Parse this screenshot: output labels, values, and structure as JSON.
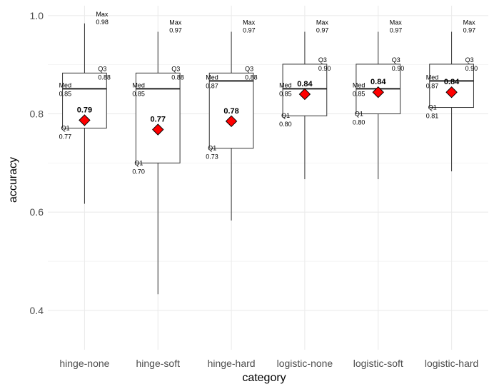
{
  "chart_data": {
    "type": "boxplot",
    "xlabel": "category",
    "ylabel": "accuracy",
    "ylim": [
      0.32,
      1.02
    ],
    "y_ticks": [
      0.4,
      0.6,
      0.8,
      1.0
    ],
    "y_tick_labels": [
      "0.4",
      "0.6",
      "0.8",
      "1.0"
    ],
    "grid": true,
    "annotation_labels": {
      "max": "Max",
      "q3": "Q3",
      "median": "Med",
      "q1": "Q1"
    },
    "mean_marker_color": "#ff0000",
    "categories": [
      "hinge-none",
      "hinge-soft",
      "hinge-hard",
      "logistic-none",
      "logistic-soft",
      "logistic-hard"
    ],
    "boxes": [
      {
        "category": "hinge-none",
        "whisker_low": 0.617,
        "q1": 0.771,
        "median": 0.851,
        "q3": 0.883,
        "max": 0.984,
        "mean": 0.787,
        "max_label": "0.98",
        "q3_label": "0.88",
        "median_label": "0.85",
        "q1_label": "0.77",
        "mean_label": "0.79"
      },
      {
        "category": "hinge-soft",
        "whisker_low": 0.433,
        "q1": 0.7,
        "median": 0.851,
        "q3": 0.883,
        "max": 0.967,
        "mean": 0.768,
        "max_label": "0.97",
        "q3_label": "0.88",
        "median_label": "0.85",
        "q1_label": "0.70",
        "mean_label": "0.77"
      },
      {
        "category": "hinge-hard",
        "whisker_low": 0.583,
        "q1": 0.73,
        "median": 0.867,
        "q3": 0.883,
        "max": 0.967,
        "mean": 0.785,
        "max_label": "0.97",
        "q3_label": "0.88",
        "median_label": "0.87",
        "q1_label": "0.73",
        "mean_label": "0.78"
      },
      {
        "category": "logistic-none",
        "whisker_low": 0.667,
        "q1": 0.796,
        "median": 0.851,
        "q3": 0.901,
        "max": 0.967,
        "mean": 0.84,
        "max_label": "0.97",
        "q3_label": "0.90",
        "median_label": "0.85",
        "q1_label": "0.80",
        "mean_label": "0.84"
      },
      {
        "category": "logistic-soft",
        "whisker_low": 0.667,
        "q1": 0.8,
        "median": 0.851,
        "q3": 0.901,
        "max": 0.967,
        "mean": 0.844,
        "max_label": "0.97",
        "q3_label": "0.90",
        "median_label": "0.85",
        "q1_label": "0.80",
        "mean_label": "0.84"
      },
      {
        "category": "logistic-hard",
        "whisker_low": 0.683,
        "q1": 0.813,
        "median": 0.867,
        "q3": 0.901,
        "max": 0.967,
        "mean": 0.844,
        "max_label": "0.97",
        "q3_label": "0.90",
        "median_label": "0.87",
        "q1_label": "0.81",
        "mean_label": "0.84"
      }
    ]
  }
}
